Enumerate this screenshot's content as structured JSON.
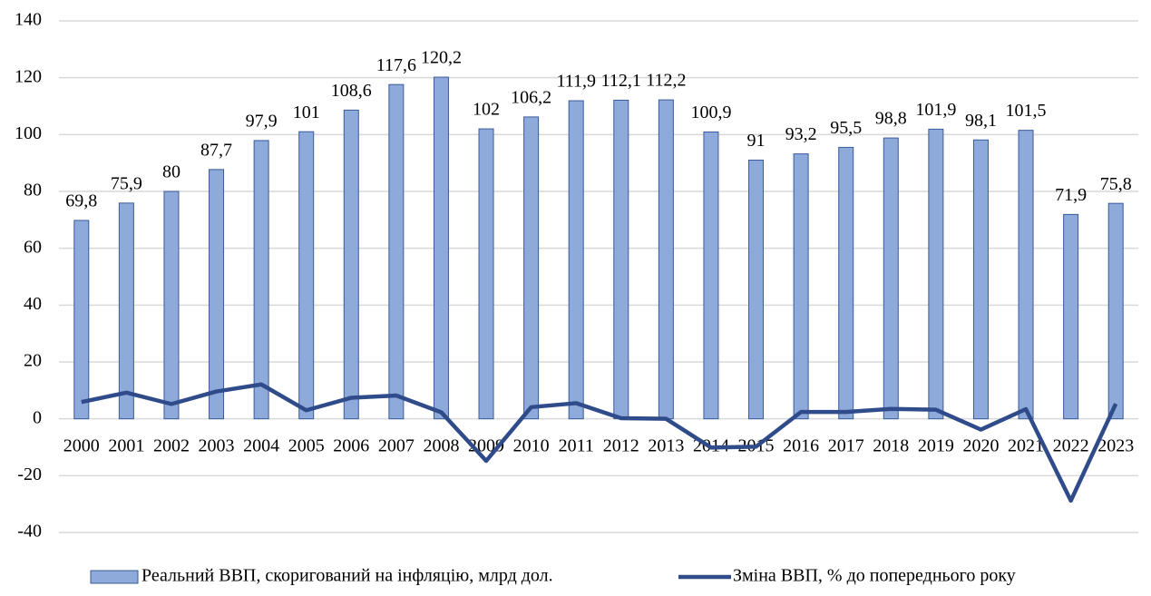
{
  "chart_data": {
    "type": "bar",
    "categories": [
      "2000",
      "2001",
      "2002",
      "2003",
      "2004",
      "2005",
      "2006",
      "2007",
      "2008",
      "2009",
      "2010",
      "2011",
      "2012",
      "2013",
      "2014",
      "2015",
      "2016",
      "2017",
      "2018",
      "2019",
      "2020",
      "2021",
      "2022",
      "2023"
    ],
    "series": [
      {
        "name": "Реальний ВВП, скоригований на інфляцію, млрд дол.",
        "type": "bar",
        "color": "#8eaadb",
        "values": [
          69.8,
          75.9,
          80,
          87.7,
          97.9,
          101,
          108.6,
          117.6,
          120.2,
          102,
          106.2,
          111.9,
          112.1,
          112.2,
          100.9,
          91,
          93.2,
          95.5,
          98.8,
          101.9,
          98.1,
          101.5,
          71.9,
          75.8
        ],
        "value_labels": [
          "69,8",
          "75,9",
          "80",
          "87,7",
          "97,9",
          "101",
          "108,6",
          "117,6",
          "120,2",
          "102",
          "106,2",
          "111,9",
          "112,1",
          "112,2",
          "100,9",
          "91",
          "93,2",
          "95,5",
          "98,8",
          "101,9",
          "98,1",
          "101,5",
          "71,9",
          "75,8"
        ]
      },
      {
        "name": "Зміна ВВП, % до попереднього року",
        "type": "line",
        "color": "#2f4b8a",
        "values": [
          5.9,
          9.2,
          5.2,
          9.6,
          12.1,
          3.0,
          7.4,
          8.2,
          2.3,
          -14.8,
          4.1,
          5.5,
          0.2,
          0.0,
          -10.1,
          -9.8,
          2.4,
          2.4,
          3.5,
          3.2,
          -3.8,
          3.4,
          -28.8,
          5.3
        ]
      }
    ],
    "ylim": [
      -40,
      140
    ],
    "yticks": [
      -40,
      -20,
      0,
      20,
      40,
      60,
      80,
      100,
      120,
      140
    ],
    "grid": true,
    "legend": "bottom"
  }
}
